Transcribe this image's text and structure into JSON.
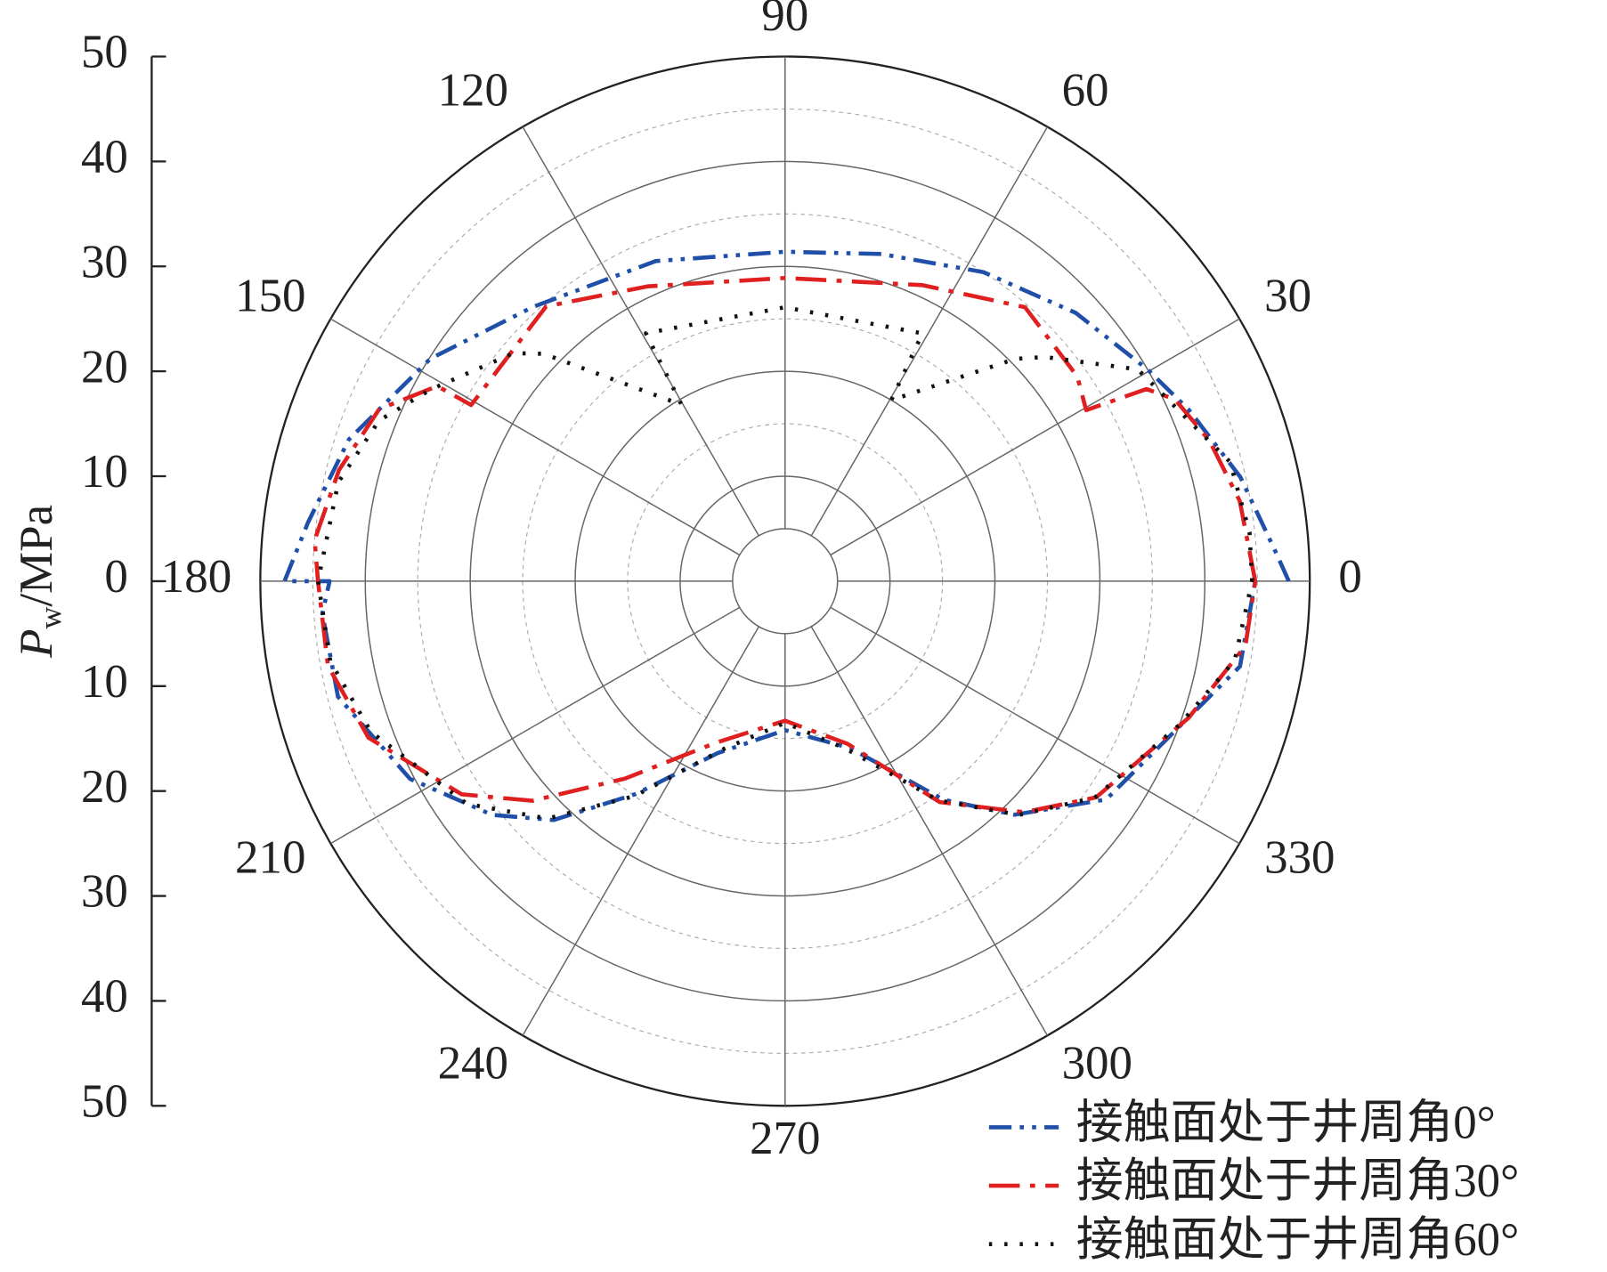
{
  "chart_data": {
    "type": "polar",
    "ylabel": {
      "symbol": "P",
      "subscript": "w",
      "unit": "/MPa"
    },
    "rlim": [
      0,
      50
    ],
    "rticks": [
      0,
      10,
      20,
      30,
      40,
      50
    ],
    "thetaticks": [
      0,
      30,
      60,
      90,
      120,
      150,
      180,
      210,
      240,
      270,
      300,
      330
    ],
    "grid": true,
    "legend": "lower right",
    "series": [
      {
        "name": "接触面处于井周角0°",
        "color": "#1f4fa8",
        "linestyle": "dashdotdot",
        "theta": [
          0,
          3.2,
          12.9,
          23,
          30.3,
          42.7,
          57.3,
          73.6,
          90,
          112,
          132.6,
          147.9,
          162,
          173,
          180,
          180,
          184,
          194.5,
          207.8,
          218.6,
          225.9,
          234.9,
          248.6,
          270,
          291.4,
          305.9,
          314.5,
          325.8,
          339.6,
          349.4,
          360
        ],
        "values": [
          48,
          46.9,
          44.5,
          41.8,
          40,
          37.7,
          35,
          32.5,
          31.4,
          32.9,
          35.5,
          39.9,
          43.7,
          45.8,
          47.7,
          43.4,
          44.2,
          44,
          40.4,
          35.7,
          31.7,
          24.8,
          17.6,
          14.2,
          17.1,
          25.7,
          31.2,
          37,
          40,
          44.1,
          44.8
        ]
      },
      {
        "name": "接触面处于井周角30°",
        "color": "#e02020",
        "linestyle": "dashdot",
        "theta": [
          0,
          10,
          18.3,
          25,
          28,
          29.6,
          35,
          48.8,
          65.1,
          90,
          115,
          131,
          150.7,
          150.7,
          157,
          166,
          175,
          180,
          190.5,
          200.6,
          213.4,
          221,
          231,
          247,
          270,
          291,
          305,
          316,
          325.2,
          341.3,
          352,
          360
        ],
        "values": [
          44.8,
          44,
          42.6,
          41,
          39,
          33,
          34,
          34.7,
          31.1,
          28.9,
          31,
          34.7,
          34.3,
          38,
          42,
          43.8,
          45,
          44.5,
          44.3,
          42.4,
          36.9,
          31.9,
          24.2,
          16.7,
          13.3,
          16.6,
          25.7,
          31.7,
          36.1,
          40.6,
          44.3,
          44.8
        ]
      },
      {
        "name": "接触面处于井周角60°",
        "color": "#111111",
        "linestyle": "dotted",
        "theta": [
          0,
          6,
          15,
          25.3,
          31,
          40.8,
          44,
          59.6,
          61,
          90,
          119.3,
          120.4,
          136.7,
          140,
          151.6,
          158.4,
          167.5,
          180,
          190,
          200,
          215,
          225,
          235,
          250,
          270,
          290,
          305,
          315,
          325,
          340,
          350,
          360
        ],
        "values": [
          44.5,
          44.5,
          43.9,
          40.4,
          39.2,
          32.7,
          30.5,
          20,
          27,
          26.1,
          27.1,
          19.5,
          31.6,
          33.8,
          38.4,
          41.6,
          43.6,
          44.5,
          44,
          42,
          37,
          32,
          25,
          17,
          13.5,
          17,
          25.5,
          31.5,
          36,
          40,
          43.5,
          44.5
        ]
      }
    ]
  }
}
